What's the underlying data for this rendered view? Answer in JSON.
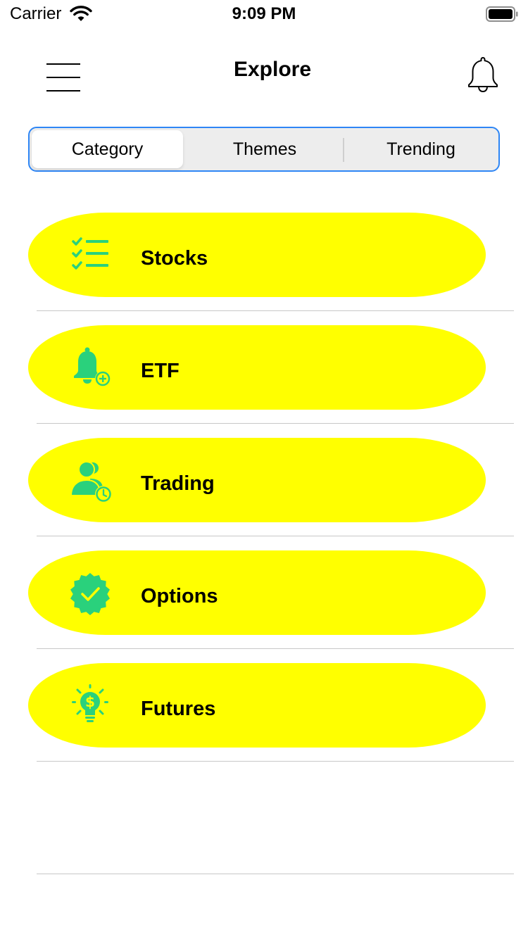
{
  "status_bar": {
    "carrier": "Carrier",
    "time": "9:09 PM",
    "wifi_icon": "wifi-icon",
    "battery_icon": "battery-icon"
  },
  "nav": {
    "title": "Explore",
    "menu_icon": "hamburger-menu-icon",
    "notification_icon": "bell-icon"
  },
  "segments": {
    "items": [
      "Category",
      "Themes",
      "Trending"
    ],
    "selected": "Category"
  },
  "categories": [
    {
      "label": "Stocks",
      "icon": "checklist-icon"
    },
    {
      "label": "ETF",
      "icon": "bell-plus-icon"
    },
    {
      "label": "Trading",
      "icon": "users-clock-icon"
    },
    {
      "label": "Options",
      "icon": "verified-badge-icon"
    },
    {
      "label": "Futures",
      "icon": "dollar-bulb-icon"
    }
  ],
  "colors": {
    "pill_background": "#ffff00",
    "icon_green": "#2ad17c",
    "segment_border": "#2e86f5",
    "segment_background": "#ededed",
    "divider": "#c8c8c8"
  }
}
